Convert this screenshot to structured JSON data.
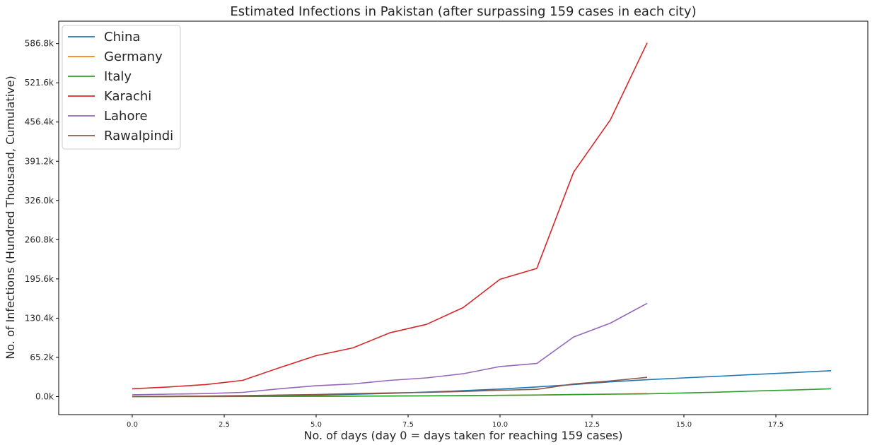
{
  "chart_data": {
    "type": "line",
    "title": "Estimated Infections in Pakistan (after surpassing 159 cases in each city)",
    "xlabel": "No. of days (day 0 = days taken for reaching 159 cases)",
    "ylabel": "No. of Infections (Hundred Thousand, Cumulative)",
    "xlim": [
      -2.0,
      20.0
    ],
    "ylim": [
      -30000,
      624000
    ],
    "xticks": [
      0.0,
      2.5,
      5.0,
      7.5,
      10.0,
      12.5,
      15.0,
      17.5
    ],
    "xtick_labels": [
      "0.0",
      "2.5",
      "5.0",
      "7.5",
      "10.0",
      "12.5",
      "15.0",
      "17.5"
    ],
    "yticks": [
      0,
      65200,
      130400,
      195600,
      260800,
      326000,
      391200,
      456400,
      521600,
      586800
    ],
    "ytick_labels": [
      "0.0k",
      "65.2k",
      "130.4k",
      "195.6k",
      "260.8k",
      "326.0k",
      "391.2k",
      "456.4k",
      "521.6k",
      "586.8k"
    ],
    "legend_position": "upper-left",
    "series": [
      {
        "name": "China",
        "color": "#1f77b4",
        "x": [
          0,
          1,
          2,
          3,
          4,
          5,
          6,
          7,
          8,
          9,
          10,
          11,
          12,
          13,
          14,
          15,
          16,
          17,
          18,
          19
        ],
        "values": [
          0,
          200,
          500,
          900,
          1500,
          2500,
          3800,
          5400,
          7500,
          9800,
          12500,
          16000,
          20000,
          24500,
          28000,
          31000,
          34000,
          37000,
          40000,
          43000
        ]
      },
      {
        "name": "Germany",
        "color": "#ff7f0e",
        "x": [
          0,
          1,
          2,
          3,
          4,
          5,
          6,
          7,
          8,
          9,
          10,
          11,
          12,
          13,
          14
        ],
        "values": [
          0,
          100,
          200,
          300,
          500,
          700,
          900,
          1100,
          1400,
          1700,
          2100,
          2600,
          3200,
          4000,
          5000
        ]
      },
      {
        "name": "Italy",
        "color": "#2ca02c",
        "x": [
          0,
          1,
          2,
          3,
          4,
          5,
          6,
          7,
          8,
          9,
          10,
          11,
          12,
          13,
          14,
          15,
          16,
          17,
          18,
          19
        ],
        "values": [
          0,
          100,
          150,
          200,
          300,
          400,
          600,
          900,
          1100,
          1500,
          2000,
          2500,
          3300,
          4000,
          4500,
          6000,
          7500,
          9500,
          11000,
          13000
        ]
      },
      {
        "name": "Karachi",
        "color": "#d62728",
        "x": [
          0,
          1,
          2,
          3,
          4,
          5,
          6,
          7,
          8,
          9,
          10,
          11,
          12,
          13,
          14
        ],
        "values": [
          13000,
          16000,
          20000,
          27000,
          48000,
          68000,
          81000,
          106000,
          120000,
          148000,
          195000,
          213000,
          373000,
          460000,
          588000
        ]
      },
      {
        "name": "Lahore",
        "color": "#9467bd",
        "x": [
          0,
          1,
          2,
          3,
          4,
          5,
          6,
          7,
          8,
          9,
          10,
          11,
          12,
          13,
          14
        ],
        "values": [
          3000,
          4000,
          5000,
          7000,
          13000,
          18000,
          21000,
          27000,
          31000,
          38000,
          50000,
          55000,
          99000,
          122000,
          155000
        ]
      },
      {
        "name": "Rawalpindi",
        "color": "#8c564b",
        "x": [
          0,
          1,
          2,
          3,
          4,
          5,
          6,
          7,
          8,
          9,
          10,
          11,
          12,
          13,
          14
        ],
        "values": [
          200,
          500,
          900,
          1600,
          2500,
          3500,
          5000,
          6000,
          7000,
          8500,
          10500,
          12000,
          21000,
          26000,
          32000
        ]
      }
    ]
  }
}
